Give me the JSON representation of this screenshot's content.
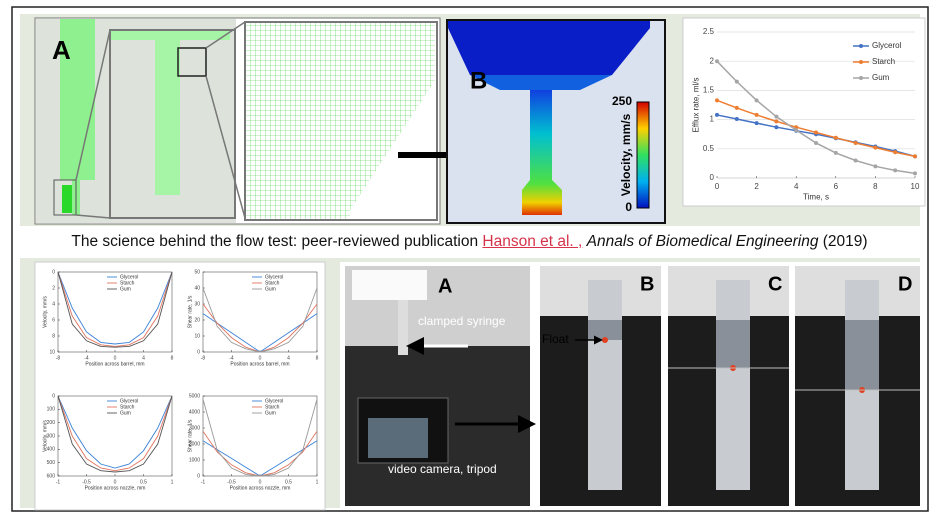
{
  "figure": {
    "cfd_label": "A",
    "velocity_label": "B",
    "colorbar": {
      "label": "Velocity, mm/s",
      "ticks": [
        0,
        250
      ]
    }
  },
  "caption": {
    "prefix": "The science behind the flow test: peer-reviewed publication",
    "link": "Hanson et al. ,",
    "journal": "Annals of Biomedical Engineering",
    "year": "(2019)"
  },
  "chart_data": [
    {
      "type": "line",
      "xlabel": "Time, s",
      "ylabel": "Efflux rate, ml/s",
      "x": [
        0,
        1,
        2,
        3,
        4,
        5,
        6,
        7,
        8,
        9,
        10
      ],
      "xlim": [
        0,
        10
      ],
      "xticks": [
        0,
        2,
        4,
        6,
        8,
        10
      ],
      "ylim": [
        0,
        2.5
      ],
      "yticks": [
        0,
        0.5,
        1,
        1.5,
        2,
        2.5
      ],
      "grid": true,
      "markers": true,
      "legend": "upper right",
      "series": [
        {
          "name": "Glycerol",
          "color": "#4472c4",
          "values": [
            1.08,
            1.01,
            0.94,
            0.87,
            0.81,
            0.75,
            0.68,
            0.61,
            0.54,
            0.46,
            0.37
          ]
        },
        {
          "name": "Starch",
          "color": "#ed7d31",
          "values": [
            1.33,
            1.2,
            1.08,
            0.97,
            0.87,
            0.78,
            0.69,
            0.6,
            0.52,
            0.44,
            0.37
          ]
        },
        {
          "name": "Gum",
          "color": "#a5a5a5",
          "values": [
            2.0,
            1.65,
            1.33,
            1.05,
            0.82,
            0.6,
            0.43,
            0.3,
            0.2,
            0.13,
            0.08
          ]
        }
      ]
    },
    {
      "type": "line",
      "xlabel": "Position across barrel, mm",
      "ylabel": "Velocity, mm/s",
      "x": [
        -8,
        -6,
        -4,
        -2,
        0,
        2,
        4,
        6,
        8
      ],
      "xlim": [
        -8,
        8
      ],
      "xticks": [
        -8,
        -4,
        0,
        4,
        8
      ],
      "ylim": [
        0,
        10
      ],
      "yticks": [
        0,
        2,
        4,
        6,
        8,
        10
      ],
      "y_reversed": true,
      "legend": "upper center",
      "series": [
        {
          "name": "Glycerol",
          "color": "#3b82d6",
          "values": [
            0,
            4.5,
            7.5,
            8.8,
            9.0,
            8.8,
            7.5,
            4.5,
            0
          ]
        },
        {
          "name": "Starch",
          "color": "#e0735e",
          "values": [
            0,
            5.5,
            8.2,
            9.1,
            9.3,
            9.1,
            8.2,
            5.5,
            0
          ]
        },
        {
          "name": "Gum",
          "color": "#555555",
          "values": [
            0,
            6.5,
            8.6,
            9.3,
            9.4,
            9.3,
            8.6,
            6.5,
            0
          ]
        }
      ]
    },
    {
      "type": "line",
      "xlabel": "Position across barrel, mm",
      "ylabel": "Shear rate, 1/s",
      "x": [
        -8,
        -6,
        -4,
        -2,
        0,
        2,
        4,
        6,
        8
      ],
      "xlim": [
        -8,
        8
      ],
      "xticks": [
        -8,
        -4,
        0,
        4,
        8
      ],
      "ylim": [
        0,
        50
      ],
      "yticks": [
        0,
        10,
        20,
        30,
        40,
        50
      ],
      "legend": "upper center",
      "series": [
        {
          "name": "Glycerol",
          "color": "#3b82d6",
          "values": [
            24,
            18,
            12,
            6,
            0,
            6,
            12,
            18,
            24
          ]
        },
        {
          "name": "Starch",
          "color": "#e0735e",
          "values": [
            30,
            18,
            9,
            3,
            0,
            3,
            9,
            18,
            30
          ]
        },
        {
          "name": "Gum",
          "color": "#999999",
          "values": [
            40,
            16,
            6,
            2,
            0,
            2,
            6,
            16,
            40
          ]
        }
      ]
    },
    {
      "type": "line",
      "xlabel": "Position across nozzle, mm",
      "ylabel": "Velocity, mm/s",
      "x": [
        -1,
        -0.75,
        -0.5,
        -0.25,
        0,
        0.25,
        0.5,
        0.75,
        1
      ],
      "xlim": [
        -1,
        1
      ],
      "xticks": [
        -1,
        -0.5,
        0,
        0.5,
        1
      ],
      "ylim": [
        0,
        600
      ],
      "yticks": [
        0,
        100,
        200,
        300,
        400,
        500,
        600
      ],
      "y_reversed": true,
      "legend": "upper center",
      "series": [
        {
          "name": "Glycerol",
          "color": "#3b82d6",
          "values": [
            0,
            240,
            410,
            510,
            540,
            510,
            410,
            240,
            0
          ]
        },
        {
          "name": "Starch",
          "color": "#e0735e",
          "values": [
            0,
            300,
            470,
            540,
            560,
            540,
            470,
            300,
            0
          ]
        },
        {
          "name": "Gum",
          "color": "#555555",
          "values": [
            0,
            360,
            510,
            560,
            570,
            560,
            510,
            360,
            0
          ]
        }
      ]
    },
    {
      "type": "line",
      "xlabel": "Position across nozzle, mm",
      "ylabel": "Shear rate, 1/s",
      "x": [
        -1,
        -0.75,
        -0.5,
        -0.25,
        0,
        0.25,
        0.5,
        0.75,
        1
      ],
      "xlim": [
        -1,
        1
      ],
      "xticks": [
        -1,
        -0.5,
        0,
        0.5,
        1
      ],
      "ylim": [
        0,
        5000
      ],
      "yticks": [
        0,
        1000,
        2000,
        3000,
        4000,
        5000
      ],
      "legend": "upper center",
      "series": [
        {
          "name": "Glycerol",
          "color": "#3b82d6",
          "values": [
            2200,
            1650,
            1100,
            550,
            0,
            550,
            1100,
            1650,
            2200
          ]
        },
        {
          "name": "Starch",
          "color": "#e0735e",
          "values": [
            2800,
            1500,
            700,
            200,
            0,
            200,
            700,
            1500,
            2800
          ]
        },
        {
          "name": "Gum",
          "color": "#999999",
          "values": [
            4800,
            1600,
            500,
            100,
            0,
            100,
            500,
            1600,
            4800
          ]
        }
      ]
    }
  ],
  "photos": {
    "labels": [
      "A",
      "B",
      "C",
      "D"
    ],
    "clamp": "clamped syringe",
    "float": "Float",
    "camera": "video camera, tripod"
  }
}
